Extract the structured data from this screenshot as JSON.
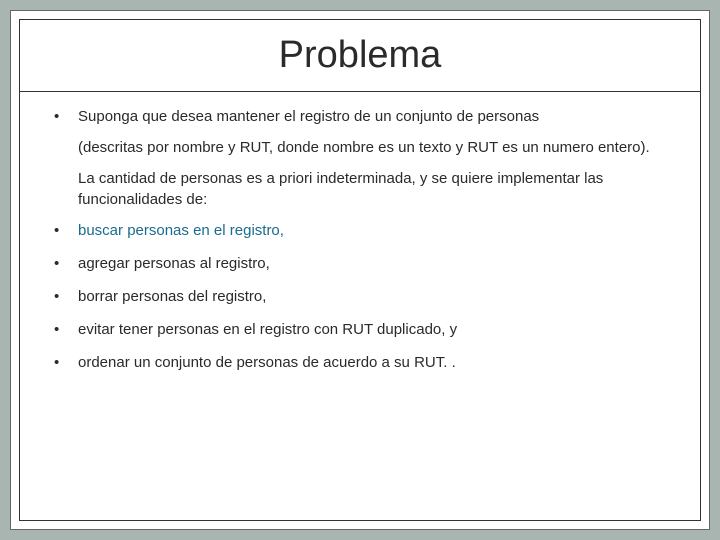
{
  "title": "Problema",
  "intro": "Suponga que desea mantener el registro de un conjunto de personas",
  "desc": "(descritas por nombre y RUT, donde nombre es un texto y RUT es un numero entero).",
  "lead": " La cantidad de personas es a priori indeterminada, y se quiere implementar  las funcionalidades de:",
  "items": [
    {
      "text": "buscar personas en el registro,",
      "highlight": true
    },
    {
      "text": "agregar personas al registro,",
      "highlight": false
    },
    {
      "text": "borrar personas del registro,",
      "highlight": false
    },
    {
      "text": "evitar tener personas en el registro con RUT duplicado, y",
      "highlight": false
    },
    {
      "text": "ordenar un conjunto de personas de acuerdo a su RUT. .",
      "highlight": false
    }
  ],
  "colors": {
    "background": "#a8b5b0",
    "frame_bg": "#ffffff",
    "border": "#333333",
    "text": "#2a2a2a",
    "highlight": "#1a6b8f"
  },
  "fonts": {
    "title_size": 38,
    "body_size": 15
  }
}
